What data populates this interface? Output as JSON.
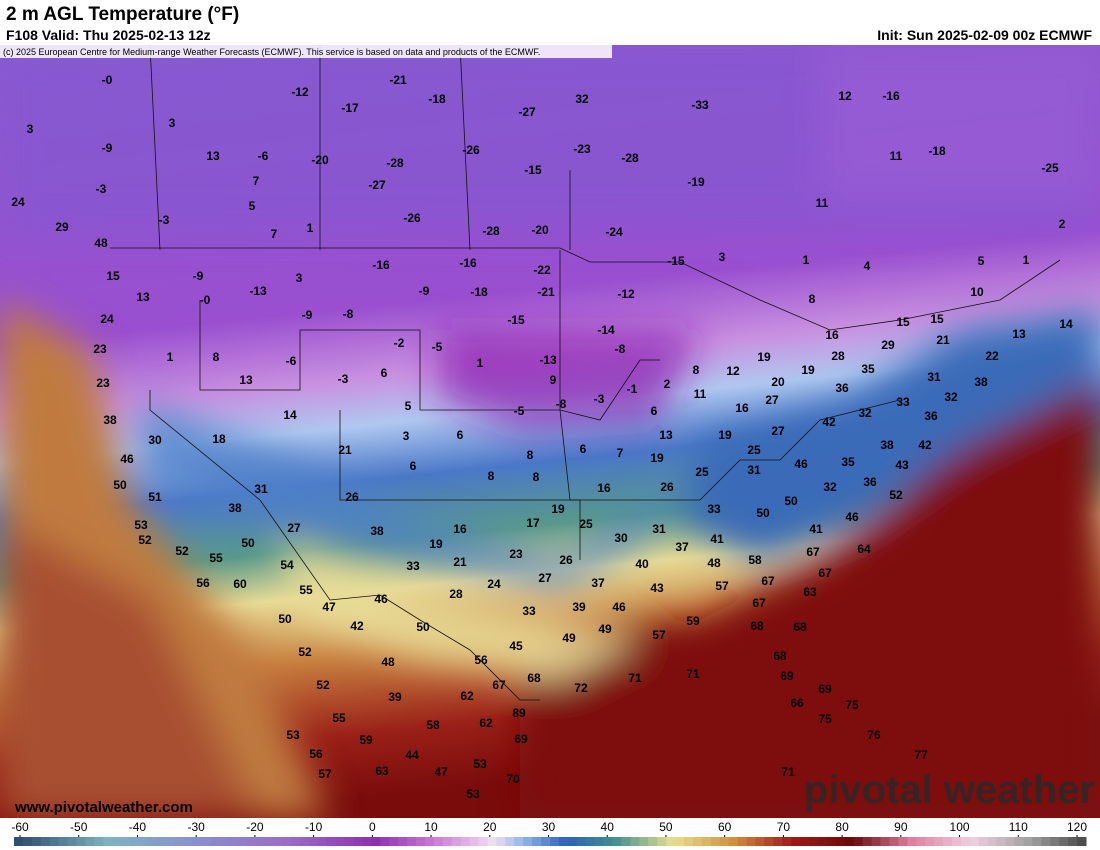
{
  "header": {
    "title": "2 m AGL Temperature (°F)",
    "valid": "F108 Valid: Thu 2025-02-13 12z",
    "init": "Init: Sun 2025-02-09 00z ECMWF",
    "credit": "(c) 2025 European Centre for Medium-range Weather Forecasts (ECMWF). This service is based on data and products of the ECMWF."
  },
  "map": {
    "labels": [
      "-0",
      "-21",
      "-12",
      "-18",
      "-17",
      "32",
      "-33",
      "-27",
      "12",
      "-16",
      "3",
      "3",
      "-9",
      "13",
      "-6",
      "-20",
      "-28",
      "-26",
      "-23",
      "-28",
      "11",
      "-18",
      "-25",
      "-15",
      "7",
      "-27",
      "-19",
      "-3",
      "24",
      "5",
      "-26",
      "11",
      "-3",
      "29",
      "7",
      "1",
      "-28",
      "-20",
      "-24",
      "2",
      "48",
      "15",
      "-9",
      "3",
      "-16",
      "-16",
      "-22",
      "-15",
      "3",
      "1",
      "4",
      "5",
      "1",
      "13",
      "-0",
      "-13",
      "-9",
      "-18",
      "-21",
      "-12",
      "10",
      "8",
      "15",
      "15",
      "13",
      "14",
      "24",
      "-9",
      "-8",
      "-15",
      "-14",
      "16",
      "23",
      "1",
      "8",
      "-6",
      "-2",
      "-5",
      "1",
      "-13",
      "-8",
      "19",
      "29",
      "21",
      "22",
      "28",
      "12",
      "35",
      "23",
      "13",
      "-3",
      "6",
      "9",
      "2",
      "8",
      "20",
      "19",
      "31",
      "38",
      "36",
      "-1",
      "11",
      "32",
      "38",
      "14",
      "5",
      "-5",
      "-8",
      "-3",
      "6",
      "16",
      "27",
      "33",
      "32",
      "36",
      "42",
      "30",
      "18",
      "3",
      "6",
      "13",
      "19",
      "27",
      "38",
      "42",
      "46",
      "21",
      "8",
      "6",
      "7",
      "19",
      "25",
      "46",
      "35",
      "43",
      "6",
      "25",
      "31",
      "8",
      "8",
      "36",
      "50",
      "31",
      "16",
      "26",
      "32",
      "52",
      "51",
      "26",
      "50",
      "46",
      "38",
      "19",
      "33",
      "50",
      "53",
      "27",
      "16",
      "17",
      "25",
      "31",
      "41",
      "52",
      "38",
      "30",
      "41",
      "50",
      "19",
      "64",
      "52",
      "55",
      "37",
      "58",
      "67",
      "23",
      "26",
      "21",
      "54",
      "33",
      "40",
      "48",
      "67",
      "56",
      "60",
      "27",
      "24",
      "37",
      "43",
      "57",
      "67",
      "55",
      "28",
      "46",
      "63",
      "47",
      "39",
      "46",
      "67",
      "33",
      "50",
      "42",
      "50",
      "49",
      "57",
      "59",
      "68",
      "68",
      "49",
      "45",
      "52",
      "48",
      "56",
      "68",
      "67",
      "68",
      "72",
      "71",
      "71",
      "69",
      "52",
      "62",
      "39",
      "69",
      "66",
      "75",
      "55",
      "89",
      "62",
      "58",
      "75",
      "76",
      "53",
      "59",
      "69",
      "56",
      "44",
      "77",
      "53",
      "57",
      "63",
      "47",
      "70",
      "71",
      "53"
    ]
  },
  "colorbar": {
    "lim": [
      -60,
      120
    ],
    "ticks": [
      -60,
      -50,
      -40,
      -30,
      -20,
      -10,
      0,
      10,
      20,
      30,
      40,
      50,
      60,
      70,
      80,
      90,
      100,
      110,
      120
    ]
  },
  "footer": {
    "website": "www.pivotalweather.com",
    "watermark": "pivotal weather"
  }
}
